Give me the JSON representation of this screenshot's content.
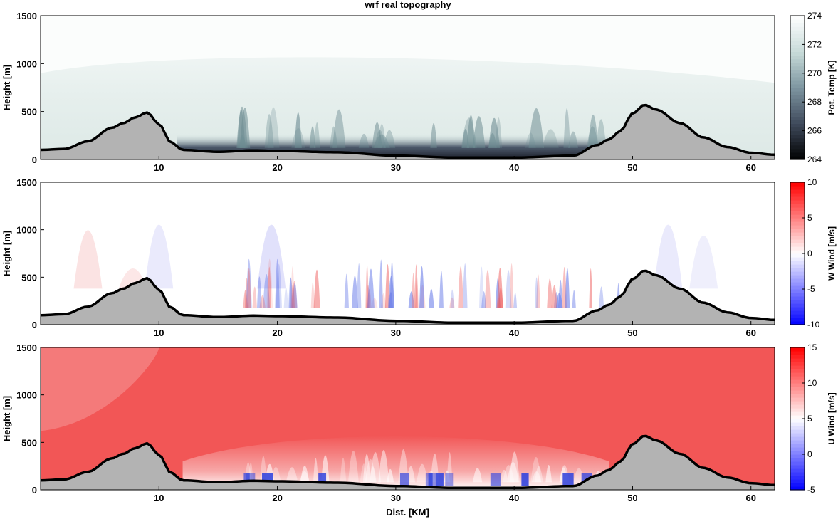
{
  "title": "wrf real topography",
  "chart_data": [
    {
      "type": "heatmap",
      "quantity": "potential temperature",
      "ylabel": "Height [m]",
      "xlabel": "",
      "xlim": [
        0,
        62
      ],
      "ylim": [
        0,
        1500
      ],
      "xticks": [
        10,
        20,
        30,
        40,
        50,
        60
      ],
      "yticks": [
        0,
        500,
        1000,
        1500
      ],
      "colorbar": {
        "label": "Pot. Temp [K]",
        "range": [
          264,
          274
        ],
        "ticks": [
          264,
          266,
          268,
          270,
          272,
          274
        ],
        "colors": [
          "#000000",
          "#3f4a5c",
          "#7d95a0",
          "#c8dbd9",
          "#ffffff"
        ]
      },
      "topography": {
        "color": "#b3b3b3",
        "x": [
          0,
          2,
          4,
          6,
          7,
          8,
          9,
          10,
          11,
          12,
          15,
          18,
          20,
          25,
          30,
          35,
          40,
          45,
          47,
          48,
          49,
          50,
          51,
          52,
          54,
          56,
          58,
          60,
          62
        ],
        "height": [
          100,
          110,
          190,
          330,
          380,
          440,
          490,
          370,
          180,
          100,
          80,
          95,
          90,
          75,
          40,
          20,
          20,
          40,
          150,
          210,
          300,
          480,
          570,
          520,
          380,
          230,
          130,
          70,
          50
        ]
      }
    },
    {
      "type": "heatmap",
      "quantity": "vertical wind",
      "ylabel": "Height [m]",
      "xlabel": "",
      "xlim": [
        0,
        62
      ],
      "ylim": [
        0,
        1500
      ],
      "xticks": [
        10,
        20,
        30,
        40,
        50,
        60
      ],
      "yticks": [
        0,
        500,
        1000,
        1500
      ],
      "colorbar": {
        "label": "W Wind [m/s]",
        "range": [
          -10,
          10
        ],
        "ticks": [
          -10,
          -5,
          0,
          5,
          10
        ],
        "colors": [
          "#0000ff",
          "#ffffff",
          "#ff0000"
        ]
      },
      "topography": {
        "color": "#b3b3b3",
        "x": [
          0,
          2,
          4,
          6,
          7,
          8,
          9,
          10,
          11,
          12,
          15,
          18,
          20,
          25,
          30,
          35,
          40,
          45,
          47,
          48,
          49,
          50,
          51,
          52,
          54,
          56,
          58,
          60,
          62
        ],
        "height": [
          100,
          110,
          190,
          330,
          380,
          440,
          490,
          370,
          180,
          100,
          80,
          95,
          90,
          75,
          40,
          20,
          20,
          40,
          150,
          210,
          300,
          480,
          570,
          520,
          380,
          230,
          130,
          70,
          50
        ]
      }
    },
    {
      "type": "heatmap",
      "quantity": "horizontal wind",
      "ylabel": "Height [m]",
      "xlabel": "Dist. [KM]",
      "xlim": [
        0,
        62
      ],
      "ylim": [
        0,
        1500
      ],
      "xticks": [
        10,
        20,
        30,
        40,
        50,
        60
      ],
      "yticks": [
        0,
        500,
        1000,
        1500
      ],
      "colorbar": {
        "label": "U Wind [m/s]",
        "range": [
          -5,
          15
        ],
        "ticks": [
          -5,
          0,
          5,
          10,
          15
        ],
        "colors": [
          "#0000ff",
          "#ffffff",
          "#ff0000"
        ]
      },
      "topography": {
        "color": "#b3b3b3",
        "x": [
          0,
          2,
          4,
          6,
          7,
          8,
          9,
          10,
          11,
          12,
          15,
          18,
          20,
          25,
          30,
          35,
          40,
          45,
          47,
          48,
          49,
          50,
          51,
          52,
          54,
          56,
          58,
          60,
          62
        ],
        "height": [
          100,
          110,
          190,
          330,
          380,
          440,
          490,
          370,
          180,
          100,
          80,
          95,
          90,
          75,
          40,
          20,
          20,
          40,
          150,
          210,
          300,
          480,
          570,
          520,
          380,
          230,
          130,
          70,
          50
        ]
      }
    }
  ]
}
